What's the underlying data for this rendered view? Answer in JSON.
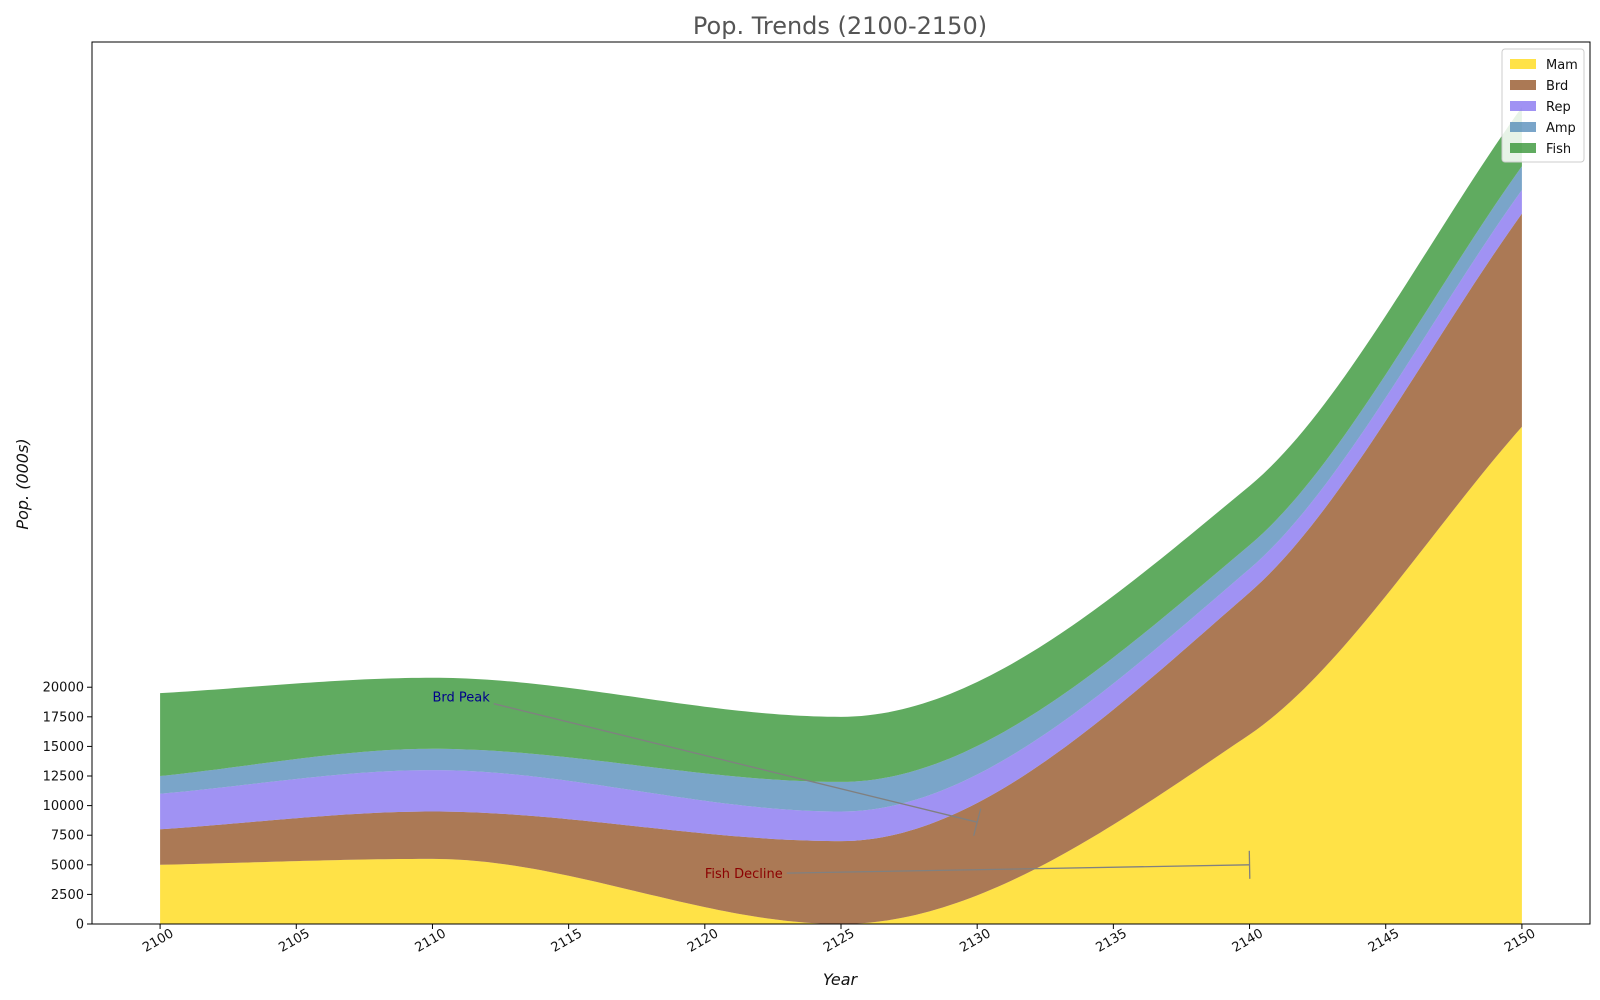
{
  "chart_data": {
    "type": "area",
    "stacked": true,
    "title": "Pop. Trends (2100-2150)",
    "xlabel": "Year",
    "ylabel": "Pop. (000s)",
    "x": [
      2100,
      2110,
      2125,
      2140,
      2150
    ],
    "xlim": [
      2097.5,
      2152.5
    ],
    "ylim": [
      0,
      74500
    ],
    "x_ticks": [
      2100,
      2105,
      2110,
      2115,
      2120,
      2125,
      2130,
      2135,
      2140,
      2145,
      2150
    ],
    "y_ticks": [
      0,
      2500,
      5000,
      7500,
      10000,
      12500,
      15000,
      17500,
      20000
    ],
    "legend_position": "top-right",
    "grid": false,
    "series": [
      {
        "name": "Mam",
        "color": "#FFD700",
        "values": [
          5000,
          5500,
          0,
          16000,
          42000
        ]
      },
      {
        "name": "Brd",
        "color": "#8B4513",
        "values": [
          3000,
          4000,
          7000,
          12000,
          18000
        ]
      },
      {
        "name": "Rep",
        "color": "#7B68EE",
        "values": [
          3000,
          3500,
          2500,
          2000,
          2000
        ]
      },
      {
        "name": "Amp",
        "color": "#4682B4",
        "values": [
          1500,
          1800,
          2500,
          2000,
          2000
        ]
      },
      {
        "name": "Fish",
        "color": "#228B22",
        "values": [
          7000,
          6000,
          5500,
          5000,
          5000
        ]
      }
    ],
    "annotations": [
      {
        "text": "Brd Peak",
        "color": "#00008B",
        "text_at": [
          2110,
          19200
        ],
        "point_at": [
          2130,
          8600
        ]
      },
      {
        "text": "Fish Decline",
        "color": "#8B0000",
        "text_at": [
          2120,
          4300
        ],
        "point_at": [
          2140,
          5000
        ]
      }
    ]
  }
}
